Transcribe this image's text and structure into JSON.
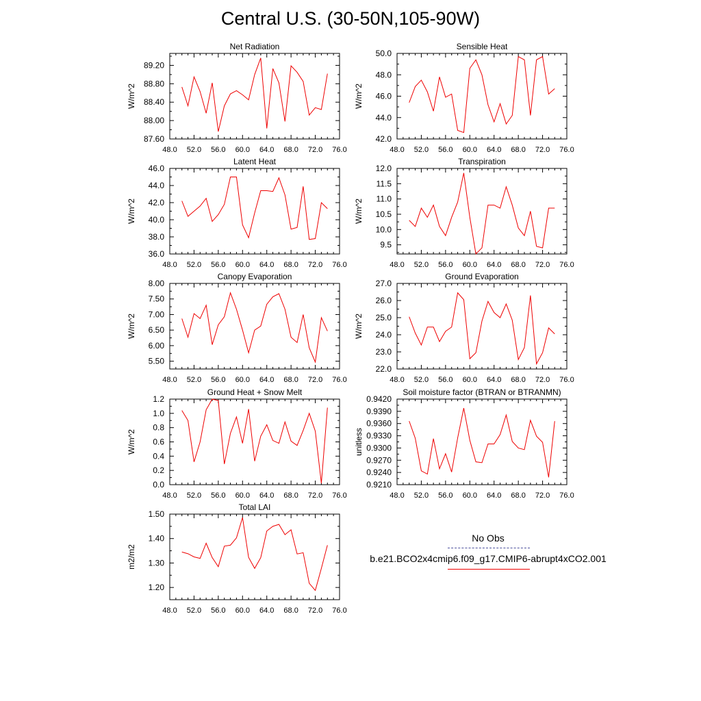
{
  "title": "Central U.S. (30-50N,105-90W)",
  "legend": {
    "obs_label": "No Obs",
    "obs_color": "#4b4f9c",
    "case_label": "b.e21.BCO2x4cmip6.f09_g17.CMIP6-abrupt4xCO2.001",
    "case_color": "#ee0000"
  },
  "chart_data": [
    {
      "type": "line",
      "title": "Net Radiation",
      "xlabel": "",
      "ylabel": "W/m^2",
      "xlim": [
        48,
        76
      ],
      "ylim": [
        87.6,
        89.46
      ],
      "xticks": [
        "48.0",
        "52.0",
        "56.0",
        "60.0",
        "64.0",
        "68.0",
        "72.0",
        "76.0"
      ],
      "yticks": [
        "87.60",
        "88.00",
        "88.40",
        "88.80",
        "89.20"
      ],
      "ytick_values": [
        87.6,
        88.0,
        88.4,
        88.8,
        89.2
      ],
      "series": [
        {
          "color": "#ee0000",
          "x": [
            50,
            51,
            52,
            53,
            54,
            55,
            56,
            57,
            58,
            59,
            60,
            61,
            62,
            63,
            64,
            65,
            66,
            67,
            68,
            69,
            70,
            71,
            72,
            73,
            74
          ],
          "values": [
            88.73,
            88.32,
            88.95,
            88.63,
            88.16,
            88.82,
            87.76,
            88.32,
            88.58,
            88.65,
            88.56,
            88.45,
            89.0,
            89.36,
            87.83,
            89.13,
            88.82,
            87.98,
            89.19,
            89.05,
            88.85,
            88.12,
            88.28,
            88.24,
            89.02
          ]
        }
      ]
    },
    {
      "type": "line",
      "title": "Sensible Heat",
      "xlabel": "",
      "ylabel": "W/m^2",
      "xlim": [
        48,
        76
      ],
      "ylim": [
        42.0,
        50.0
      ],
      "xticks": [
        "48.0",
        "52.0",
        "56.0",
        "60.0",
        "64.0",
        "68.0",
        "72.0",
        "76.0"
      ],
      "yticks": [
        "42.0",
        "44.0",
        "46.0",
        "48.0",
        "50.0"
      ],
      "ytick_values": [
        42,
        44,
        46,
        48,
        50
      ],
      "series": [
        {
          "color": "#ee0000",
          "x": [
            50,
            51,
            52,
            53,
            54,
            55,
            56,
            57,
            58,
            59,
            60,
            61,
            62,
            63,
            64,
            65,
            66,
            67,
            68,
            69,
            70,
            71,
            72,
            73,
            74
          ],
          "values": [
            45.4,
            46.9,
            47.5,
            46.4,
            44.6,
            47.8,
            45.9,
            46.2,
            42.8,
            42.6,
            48.6,
            49.4,
            48.0,
            45.2,
            43.6,
            45.3,
            43.4,
            44.2,
            49.7,
            49.4,
            44.2,
            49.4,
            49.7,
            46.2,
            46.7
          ]
        }
      ]
    },
    {
      "type": "line",
      "title": "Latent Heat",
      "xlabel": "",
      "ylabel": "W/m^2",
      "xlim": [
        48,
        76
      ],
      "ylim": [
        36.0,
        46.0
      ],
      "xticks": [
        "48.0",
        "52.0",
        "56.0",
        "60.0",
        "64.0",
        "68.0",
        "72.0",
        "76.0"
      ],
      "yticks": [
        "36.0",
        "38.0",
        "40.0",
        "42.0",
        "44.0",
        "46.0"
      ],
      "ytick_values": [
        36,
        38,
        40,
        42,
        44,
        46
      ],
      "series": [
        {
          "color": "#ee0000",
          "x": [
            50,
            51,
            52,
            53,
            54,
            55,
            56,
            57,
            58,
            59,
            60,
            61,
            62,
            63,
            64,
            65,
            66,
            67,
            68,
            69,
            70,
            71,
            72,
            73,
            74
          ],
          "values": [
            42.2,
            40.4,
            41.0,
            41.6,
            42.5,
            39.8,
            40.6,
            41.8,
            45.0,
            45.0,
            39.4,
            37.9,
            40.8,
            43.4,
            43.4,
            43.3,
            44.9,
            42.9,
            38.9,
            39.1,
            43.9,
            37.7,
            37.8,
            42.0,
            41.3
          ]
        }
      ]
    },
    {
      "type": "line",
      "title": "Transpiration",
      "xlabel": "",
      "ylabel": "W/m^2",
      "xlim": [
        48,
        76
      ],
      "ylim": [
        9.2,
        12.0
      ],
      "xticks": [
        "48.0",
        "52.0",
        "56.0",
        "60.0",
        "64.0",
        "68.0",
        "72.0",
        "76.0"
      ],
      "yticks": [
        "9.5",
        "10.0",
        "10.5",
        "11.0",
        "11.5",
        "12.0"
      ],
      "ytick_values": [
        9.5,
        10.0,
        10.5,
        11.0,
        11.5,
        12.0
      ],
      "series": [
        {
          "color": "#ee0000",
          "x": [
            50,
            51,
            52,
            53,
            54,
            55,
            56,
            57,
            58,
            59,
            60,
            61,
            62,
            63,
            64,
            65,
            66,
            67,
            68,
            69,
            70,
            71,
            72,
            73,
            74
          ],
          "values": [
            10.3,
            10.1,
            10.7,
            10.4,
            10.8,
            10.1,
            9.8,
            10.4,
            10.9,
            11.85,
            10.4,
            9.2,
            9.4,
            10.8,
            10.8,
            10.7,
            11.4,
            10.8,
            10.05,
            9.8,
            10.6,
            9.45,
            9.4,
            10.7,
            10.7
          ]
        }
      ]
    },
    {
      "type": "line",
      "title": "Canopy Evaporation",
      "xlabel": "",
      "ylabel": "W/m^2",
      "xlim": [
        48,
        76
      ],
      "ylim": [
        5.25,
        8.0
      ],
      "xticks": [
        "48.0",
        "52.0",
        "56.0",
        "60.0",
        "64.0",
        "68.0",
        "72.0",
        "76.0"
      ],
      "yticks": [
        "5.50",
        "6.00",
        "6.50",
        "7.00",
        "7.50",
        "8.00"
      ],
      "ytick_values": [
        5.5,
        6.0,
        6.5,
        7.0,
        7.5,
        8.0
      ],
      "series": [
        {
          "color": "#ee0000",
          "x": [
            50,
            51,
            52,
            53,
            54,
            55,
            56,
            57,
            58,
            59,
            60,
            61,
            62,
            63,
            64,
            65,
            66,
            67,
            68,
            69,
            70,
            71,
            72,
            73,
            74
          ],
          "values": [
            6.87,
            6.27,
            7.03,
            6.87,
            7.3,
            6.03,
            6.67,
            6.93,
            7.7,
            7.17,
            6.5,
            5.77,
            6.5,
            6.63,
            7.33,
            7.57,
            7.67,
            7.17,
            6.27,
            6.1,
            7.0,
            5.93,
            5.47,
            6.9,
            6.47
          ]
        }
      ]
    },
    {
      "type": "line",
      "title": "Ground Evaporation",
      "xlabel": "",
      "ylabel": "W/m^2",
      "xlim": [
        48,
        76
      ],
      "ylim": [
        22.0,
        27.0
      ],
      "xticks": [
        "48.0",
        "52.0",
        "56.0",
        "60.0",
        "64.0",
        "68.0",
        "72.0",
        "76.0"
      ],
      "yticks": [
        "22.0",
        "23.0",
        "24.0",
        "25.0",
        "26.0",
        "27.0"
      ],
      "ytick_values": [
        22,
        23,
        24,
        25,
        26,
        27
      ],
      "series": [
        {
          "color": "#ee0000",
          "x": [
            50,
            51,
            52,
            53,
            54,
            55,
            56,
            57,
            58,
            59,
            60,
            61,
            62,
            63,
            64,
            65,
            66,
            67,
            68,
            69,
            70,
            71,
            72,
            73,
            74
          ],
          "values": [
            25.05,
            24.1,
            23.4,
            24.45,
            24.45,
            23.6,
            24.2,
            24.45,
            26.45,
            26.05,
            22.6,
            22.95,
            24.8,
            25.95,
            25.3,
            25.0,
            25.8,
            24.85,
            22.55,
            23.25,
            26.3,
            22.3,
            22.95,
            24.4,
            24.05
          ]
        }
      ]
    },
    {
      "type": "line",
      "title": "Ground Heat + Snow Melt",
      "xlabel": "",
      "ylabel": "W/m^2",
      "xlim": [
        48,
        76
      ],
      "ylim": [
        0.0,
        1.2
      ],
      "xticks": [
        "48.0",
        "52.0",
        "56.0",
        "60.0",
        "64.0",
        "68.0",
        "72.0",
        "76.0"
      ],
      "yticks": [
        "0.0",
        "0.2",
        "0.4",
        "0.6",
        "0.8",
        "1.0",
        "1.2"
      ],
      "ytick_values": [
        0.0,
        0.2,
        0.4,
        0.6,
        0.8,
        1.0,
        1.2
      ],
      "series": [
        {
          "color": "#ee0000",
          "x": [
            50,
            51,
            52,
            53,
            54,
            55,
            56,
            57,
            58,
            59,
            60,
            61,
            62,
            63,
            64,
            65,
            66,
            67,
            68,
            69,
            70,
            71,
            72,
            73,
            74
          ],
          "values": [
            1.04,
            0.9,
            0.32,
            0.6,
            1.05,
            1.2,
            1.18,
            0.29,
            0.72,
            0.95,
            0.58,
            1.06,
            0.33,
            0.68,
            0.84,
            0.62,
            0.58,
            0.88,
            0.61,
            0.55,
            0.76,
            1.0,
            0.75,
            0.02,
            1.08
          ]
        }
      ]
    },
    {
      "type": "line",
      "title": "Soil moisture factor (BTRAN or BTRANMN)",
      "xlabel": "",
      "ylabel": "unitless",
      "xlim": [
        48,
        76
      ],
      "ylim": [
        0.921,
        0.942
      ],
      "xticks": [
        "48.0",
        "52.0",
        "56.0",
        "60.0",
        "64.0",
        "68.0",
        "72.0",
        "76.0"
      ],
      "yticks": [
        "0.9210",
        "0.9240",
        "0.9270",
        "0.9300",
        "0.9330",
        "0.9360",
        "0.9390",
        "0.9420"
      ],
      "ytick_values": [
        0.921,
        0.924,
        0.927,
        0.93,
        0.933,
        0.936,
        0.939,
        0.942
      ],
      "series": [
        {
          "color": "#ee0000",
          "x": [
            50,
            51,
            52,
            53,
            54,
            55,
            56,
            57,
            58,
            59,
            60,
            61,
            62,
            63,
            64,
            65,
            66,
            67,
            68,
            69,
            70,
            71,
            72,
            73,
            74
          ],
          "values": [
            0.9366,
            0.9324,
            0.9244,
            0.9236,
            0.9323,
            0.9249,
            0.9286,
            0.9241,
            0.9325,
            0.9398,
            0.9319,
            0.9266,
            0.9264,
            0.931,
            0.931,
            0.9333,
            0.9381,
            0.9316,
            0.93,
            0.9296,
            0.9368,
            0.9329,
            0.9314,
            0.9228,
            0.9366
          ]
        }
      ]
    },
    {
      "type": "line",
      "title": "Total LAI",
      "xlabel": "",
      "ylabel": "m2/m2",
      "xlim": [
        48,
        76
      ],
      "ylim": [
        1.15,
        1.5
      ],
      "xticks": [
        "48.0",
        "52.0",
        "56.0",
        "60.0",
        "64.0",
        "68.0",
        "72.0",
        "76.0"
      ],
      "yticks": [
        "1.20",
        "1.30",
        "1.40",
        "1.50"
      ],
      "ytick_values": [
        1.2,
        1.3,
        1.4,
        1.5
      ],
      "series": [
        {
          "color": "#ee0000",
          "x": [
            50,
            51,
            52,
            53,
            54,
            55,
            56,
            57,
            58,
            59,
            60,
            61,
            62,
            63,
            64,
            65,
            66,
            67,
            68,
            69,
            70,
            71,
            72,
            73,
            74
          ],
          "values": [
            1.345,
            1.338,
            1.325,
            1.319,
            1.381,
            1.322,
            1.285,
            1.369,
            1.373,
            1.403,
            1.486,
            1.323,
            1.278,
            1.322,
            1.431,
            1.45,
            1.458,
            1.416,
            1.436,
            1.337,
            1.342,
            1.217,
            1.188,
            1.278,
            1.373
          ]
        }
      ]
    }
  ]
}
